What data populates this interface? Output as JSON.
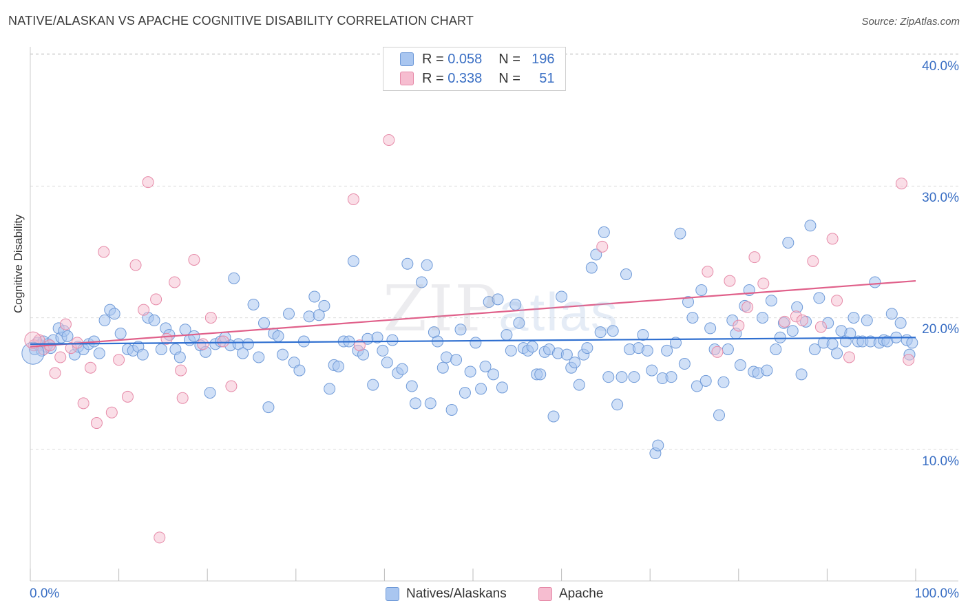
{
  "title": "NATIVE/ALASKAN VS APACHE COGNITIVE DISABILITY CORRELATION CHART",
  "source": "Source: ZipAtlas.com",
  "watermark": {
    "zip": "ZIP",
    "atlas": "atlas"
  },
  "legend": {
    "blue": {
      "r_label": "R =",
      "r_value": "0.058",
      "n_label": "N =",
      "n_value": "196"
    },
    "pink": {
      "r_label": "R =",
      "r_value": "0.338",
      "n_label": "N =",
      "n_value": "51"
    }
  },
  "colors": {
    "blue_fill": "#a9c6f0",
    "blue_stroke": "#6f9ad8",
    "blue_line": "#2f6fd0",
    "pink_fill": "#f6bdd0",
    "pink_stroke": "#e68aa8",
    "pink_line": "#e0608a",
    "tick_text": "#3a6fc4"
  },
  "chart_data": {
    "type": "scatter",
    "title": "NATIVE/ALASKAN VS APACHE COGNITIVE DISABILITY CORRELATION CHART",
    "xlabel": "",
    "ylabel": "Cognitive Disability",
    "xlim": [
      0,
      100
    ],
    "ylim": [
      0,
      41
    ],
    "x_tick_labels": [
      "0.0%",
      "100.0%"
    ],
    "y_ticks": [
      10,
      20,
      30,
      40
    ],
    "y_tick_labels": [
      "10.0%",
      "20.0%",
      "30.0%",
      "40.0%"
    ],
    "grid": "horizontal dashed",
    "legend_position": "top-center",
    "series": [
      {
        "name": "Natives/Alaskans",
        "trend": {
          "x": [
            0,
            100
          ],
          "y": [
            18.0,
            18.5
          ]
        },
        "points": [
          [
            0.5,
            17.6
          ],
          [
            0.8,
            18.1
          ],
          [
            1.0,
            17.9
          ],
          [
            1.3,
            17.5
          ],
          [
            1.5,
            18.2
          ],
          [
            1.8,
            17.8
          ],
          [
            2.0,
            18.0
          ],
          [
            2.3,
            17.7
          ],
          [
            2.6,
            18.3
          ],
          [
            3.2,
            19.2
          ],
          [
            3.5,
            18.5
          ],
          [
            3.8,
            19.0
          ],
          [
            4.2,
            18.6
          ],
          [
            5.0,
            17.2
          ],
          [
            5.4,
            17.8
          ],
          [
            6.0,
            17.6
          ],
          [
            6.6,
            18.0
          ],
          [
            7.2,
            18.2
          ],
          [
            7.8,
            17.3
          ],
          [
            8.4,
            19.8
          ],
          [
            9.0,
            20.6
          ],
          [
            9.5,
            20.3
          ],
          [
            10.2,
            18.8
          ],
          [
            11.0,
            17.6
          ],
          [
            11.6,
            17.5
          ],
          [
            12.2,
            17.8
          ],
          [
            12.7,
            17.2
          ],
          [
            13.3,
            20.0
          ],
          [
            14.0,
            19.8
          ],
          [
            14.8,
            17.6
          ],
          [
            15.3,
            19.2
          ],
          [
            15.7,
            18.7
          ],
          [
            16.4,
            17.6
          ],
          [
            16.9,
            17.0
          ],
          [
            17.5,
            19.1
          ],
          [
            18.0,
            18.3
          ],
          [
            18.5,
            18.6
          ],
          [
            19.2,
            17.9
          ],
          [
            19.8,
            17.4
          ],
          [
            20.3,
            14.3
          ],
          [
            20.9,
            18.0
          ],
          [
            21.5,
            18.2
          ],
          [
            22.0,
            18.5
          ],
          [
            22.6,
            17.9
          ],
          [
            23.0,
            23.0
          ],
          [
            23.5,
            18.0
          ],
          [
            24.0,
            17.3
          ],
          [
            24.6,
            18.0
          ],
          [
            25.2,
            21.0
          ],
          [
            25.8,
            17.0
          ],
          [
            26.4,
            19.6
          ],
          [
            26.9,
            13.2
          ],
          [
            27.5,
            18.8
          ],
          [
            28.0,
            18.6
          ],
          [
            28.5,
            17.2
          ],
          [
            29.2,
            20.3
          ],
          [
            29.8,
            16.6
          ],
          [
            30.4,
            16.0
          ],
          [
            30.9,
            18.2
          ],
          [
            31.5,
            20.1
          ],
          [
            32.1,
            21.6
          ],
          [
            32.6,
            20.2
          ],
          [
            33.2,
            20.9
          ],
          [
            33.8,
            14.6
          ],
          [
            34.3,
            16.4
          ],
          [
            34.8,
            16.3
          ],
          [
            35.4,
            18.2
          ],
          [
            36.0,
            18.2
          ],
          [
            36.5,
            24.3
          ],
          [
            37.0,
            17.5
          ],
          [
            37.6,
            17.2
          ],
          [
            38.1,
            18.4
          ],
          [
            38.7,
            14.9
          ],
          [
            39.2,
            18.5
          ],
          [
            39.8,
            17.5
          ],
          [
            40.3,
            16.6
          ],
          [
            40.9,
            18.3
          ],
          [
            41.5,
            15.8
          ],
          [
            42.0,
            16.1
          ],
          [
            42.6,
            24.1
          ],
          [
            43.1,
            14.8
          ],
          [
            43.5,
            13.5
          ],
          [
            44.2,
            22.7
          ],
          [
            44.8,
            24.0
          ],
          [
            45.2,
            13.5
          ],
          [
            45.6,
            18.9
          ],
          [
            46.0,
            18.2
          ],
          [
            46.6,
            16.2
          ],
          [
            47.0,
            17.0
          ],
          [
            47.6,
            13.0
          ],
          [
            48.1,
            16.8
          ],
          [
            48.6,
            19.1
          ],
          [
            49.1,
            14.3
          ],
          [
            49.7,
            15.9
          ],
          [
            50.3,
            18.1
          ],
          [
            50.9,
            14.6
          ],
          [
            51.4,
            16.3
          ],
          [
            51.8,
            21.2
          ],
          [
            52.3,
            15.7
          ],
          [
            52.8,
            21.4
          ],
          [
            53.3,
            14.7
          ],
          [
            53.8,
            18.7
          ],
          [
            54.3,
            17.5
          ],
          [
            54.8,
            21.0
          ],
          [
            55.2,
            19.6
          ],
          [
            55.7,
            17.7
          ],
          [
            56.2,
            17.5
          ],
          [
            56.7,
            17.8
          ],
          [
            57.2,
            15.7
          ],
          [
            57.6,
            15.7
          ],
          [
            58.1,
            17.4
          ],
          [
            58.6,
            17.6
          ],
          [
            59.1,
            12.5
          ],
          [
            59.6,
            17.3
          ],
          [
            60.0,
            21.6
          ],
          [
            60.6,
            17.2
          ],
          [
            61.1,
            16.2
          ],
          [
            61.5,
            16.6
          ],
          [
            62.0,
            14.9
          ],
          [
            62.5,
            17.2
          ],
          [
            62.9,
            17.7
          ],
          [
            63.4,
            23.8
          ],
          [
            63.9,
            24.8
          ],
          [
            64.4,
            18.9
          ],
          [
            64.8,
            26.5
          ],
          [
            65.3,
            15.5
          ],
          [
            65.8,
            19.0
          ],
          [
            66.3,
            13.4
          ],
          [
            66.8,
            15.5
          ],
          [
            67.3,
            23.3
          ],
          [
            67.7,
            17.6
          ],
          [
            68.2,
            15.5
          ],
          [
            68.7,
            17.7
          ],
          [
            69.2,
            18.7
          ],
          [
            69.7,
            17.5
          ],
          [
            70.2,
            16.0
          ],
          [
            70.6,
            9.7
          ],
          [
            70.9,
            10.3
          ],
          [
            71.4,
            15.4
          ],
          [
            71.9,
            17.5
          ],
          [
            72.4,
            15.5
          ],
          [
            72.9,
            18.1
          ],
          [
            73.4,
            26.4
          ],
          [
            73.9,
            16.5
          ],
          [
            74.3,
            21.2
          ],
          [
            74.8,
            20.0
          ],
          [
            75.3,
            14.8
          ],
          [
            75.8,
            22.1
          ],
          [
            76.3,
            15.2
          ],
          [
            76.8,
            19.2
          ],
          [
            77.3,
            17.6
          ],
          [
            77.8,
            12.6
          ],
          [
            78.3,
            15.1
          ],
          [
            78.8,
            17.6
          ],
          [
            79.3,
            19.8
          ],
          [
            79.7,
            18.8
          ],
          [
            80.2,
            16.4
          ],
          [
            80.7,
            20.9
          ],
          [
            81.2,
            22.1
          ],
          [
            81.7,
            15.9
          ],
          [
            82.2,
            15.8
          ],
          [
            82.7,
            20.0
          ],
          [
            83.2,
            16.0
          ],
          [
            83.7,
            21.3
          ],
          [
            84.2,
            17.6
          ],
          [
            84.7,
            18.5
          ],
          [
            85.1,
            19.6
          ],
          [
            85.6,
            25.7
          ],
          [
            86.1,
            19.0
          ],
          [
            86.6,
            20.8
          ],
          [
            87.1,
            15.7
          ],
          [
            87.6,
            19.7
          ],
          [
            88.1,
            27.0
          ],
          [
            88.6,
            17.6
          ],
          [
            89.1,
            21.5
          ],
          [
            89.6,
            18.1
          ],
          [
            90.1,
            19.6
          ],
          [
            90.6,
            18.0
          ],
          [
            91.1,
            17.3
          ],
          [
            91.6,
            19.0
          ],
          [
            92.1,
            18.2
          ],
          [
            92.6,
            18.8
          ],
          [
            93.0,
            20.0
          ],
          [
            93.5,
            18.2
          ],
          [
            94.0,
            18.2
          ],
          [
            94.5,
            19.8
          ],
          [
            94.9,
            18.2
          ],
          [
            95.4,
            22.7
          ],
          [
            95.9,
            18.1
          ],
          [
            96.4,
            18.3
          ],
          [
            96.8,
            18.2
          ],
          [
            97.3,
            20.3
          ],
          [
            97.8,
            18.5
          ],
          [
            98.3,
            19.6
          ],
          [
            99.0,
            18.3
          ],
          [
            99.3,
            17.2
          ],
          [
            99.6,
            18.1
          ]
        ]
      },
      {
        "name": "Apache",
        "trend": {
          "x": [
            0,
            100
          ],
          "y": [
            17.8,
            22.8
          ]
        },
        "points": [
          [
            0.4,
            17.9
          ],
          [
            1.0,
            18.3
          ],
          [
            1.5,
            17.6
          ],
          [
            2.2,
            17.9
          ],
          [
            2.8,
            15.8
          ],
          [
            3.4,
            17.0
          ],
          [
            4.0,
            19.5
          ],
          [
            4.6,
            17.7
          ],
          [
            5.3,
            18.1
          ],
          [
            6.0,
            13.5
          ],
          [
            6.8,
            16.2
          ],
          [
            7.5,
            12.0
          ],
          [
            8.3,
            25.0
          ],
          [
            9.2,
            12.8
          ],
          [
            10.0,
            16.8
          ],
          [
            11.0,
            14.0
          ],
          [
            11.9,
            24.0
          ],
          [
            12.8,
            20.6
          ],
          [
            13.3,
            30.3
          ],
          [
            14.2,
            21.4
          ],
          [
            14.6,
            3.3
          ],
          [
            15.4,
            18.4
          ],
          [
            16.3,
            22.7
          ],
          [
            17.0,
            16.0
          ],
          [
            17.2,
            13.9
          ],
          [
            18.5,
            24.4
          ],
          [
            19.5,
            18.0
          ],
          [
            20.4,
            20.0
          ],
          [
            21.8,
            18.2
          ],
          [
            22.7,
            14.8
          ],
          [
            36.5,
            29.0
          ],
          [
            37.2,
            17.9
          ],
          [
            40.5,
            33.5
          ],
          [
            64.6,
            25.4
          ],
          [
            76.5,
            23.5
          ],
          [
            77.6,
            17.4
          ],
          [
            79.0,
            22.8
          ],
          [
            80.0,
            19.4
          ],
          [
            81.0,
            20.8
          ],
          [
            81.8,
            24.6
          ],
          [
            82.8,
            22.6
          ],
          [
            85.2,
            19.7
          ],
          [
            86.5,
            20.1
          ],
          [
            87.2,
            19.8
          ],
          [
            88.4,
            24.3
          ],
          [
            89.3,
            19.3
          ],
          [
            90.6,
            26.0
          ],
          [
            91.1,
            21.3
          ],
          [
            92.5,
            17.0
          ],
          [
            98.4,
            30.2
          ],
          [
            99.2,
            16.8
          ]
        ]
      }
    ]
  },
  "bottom_legend": {
    "blue": "Natives/Alaskans",
    "pink": "Apache"
  }
}
